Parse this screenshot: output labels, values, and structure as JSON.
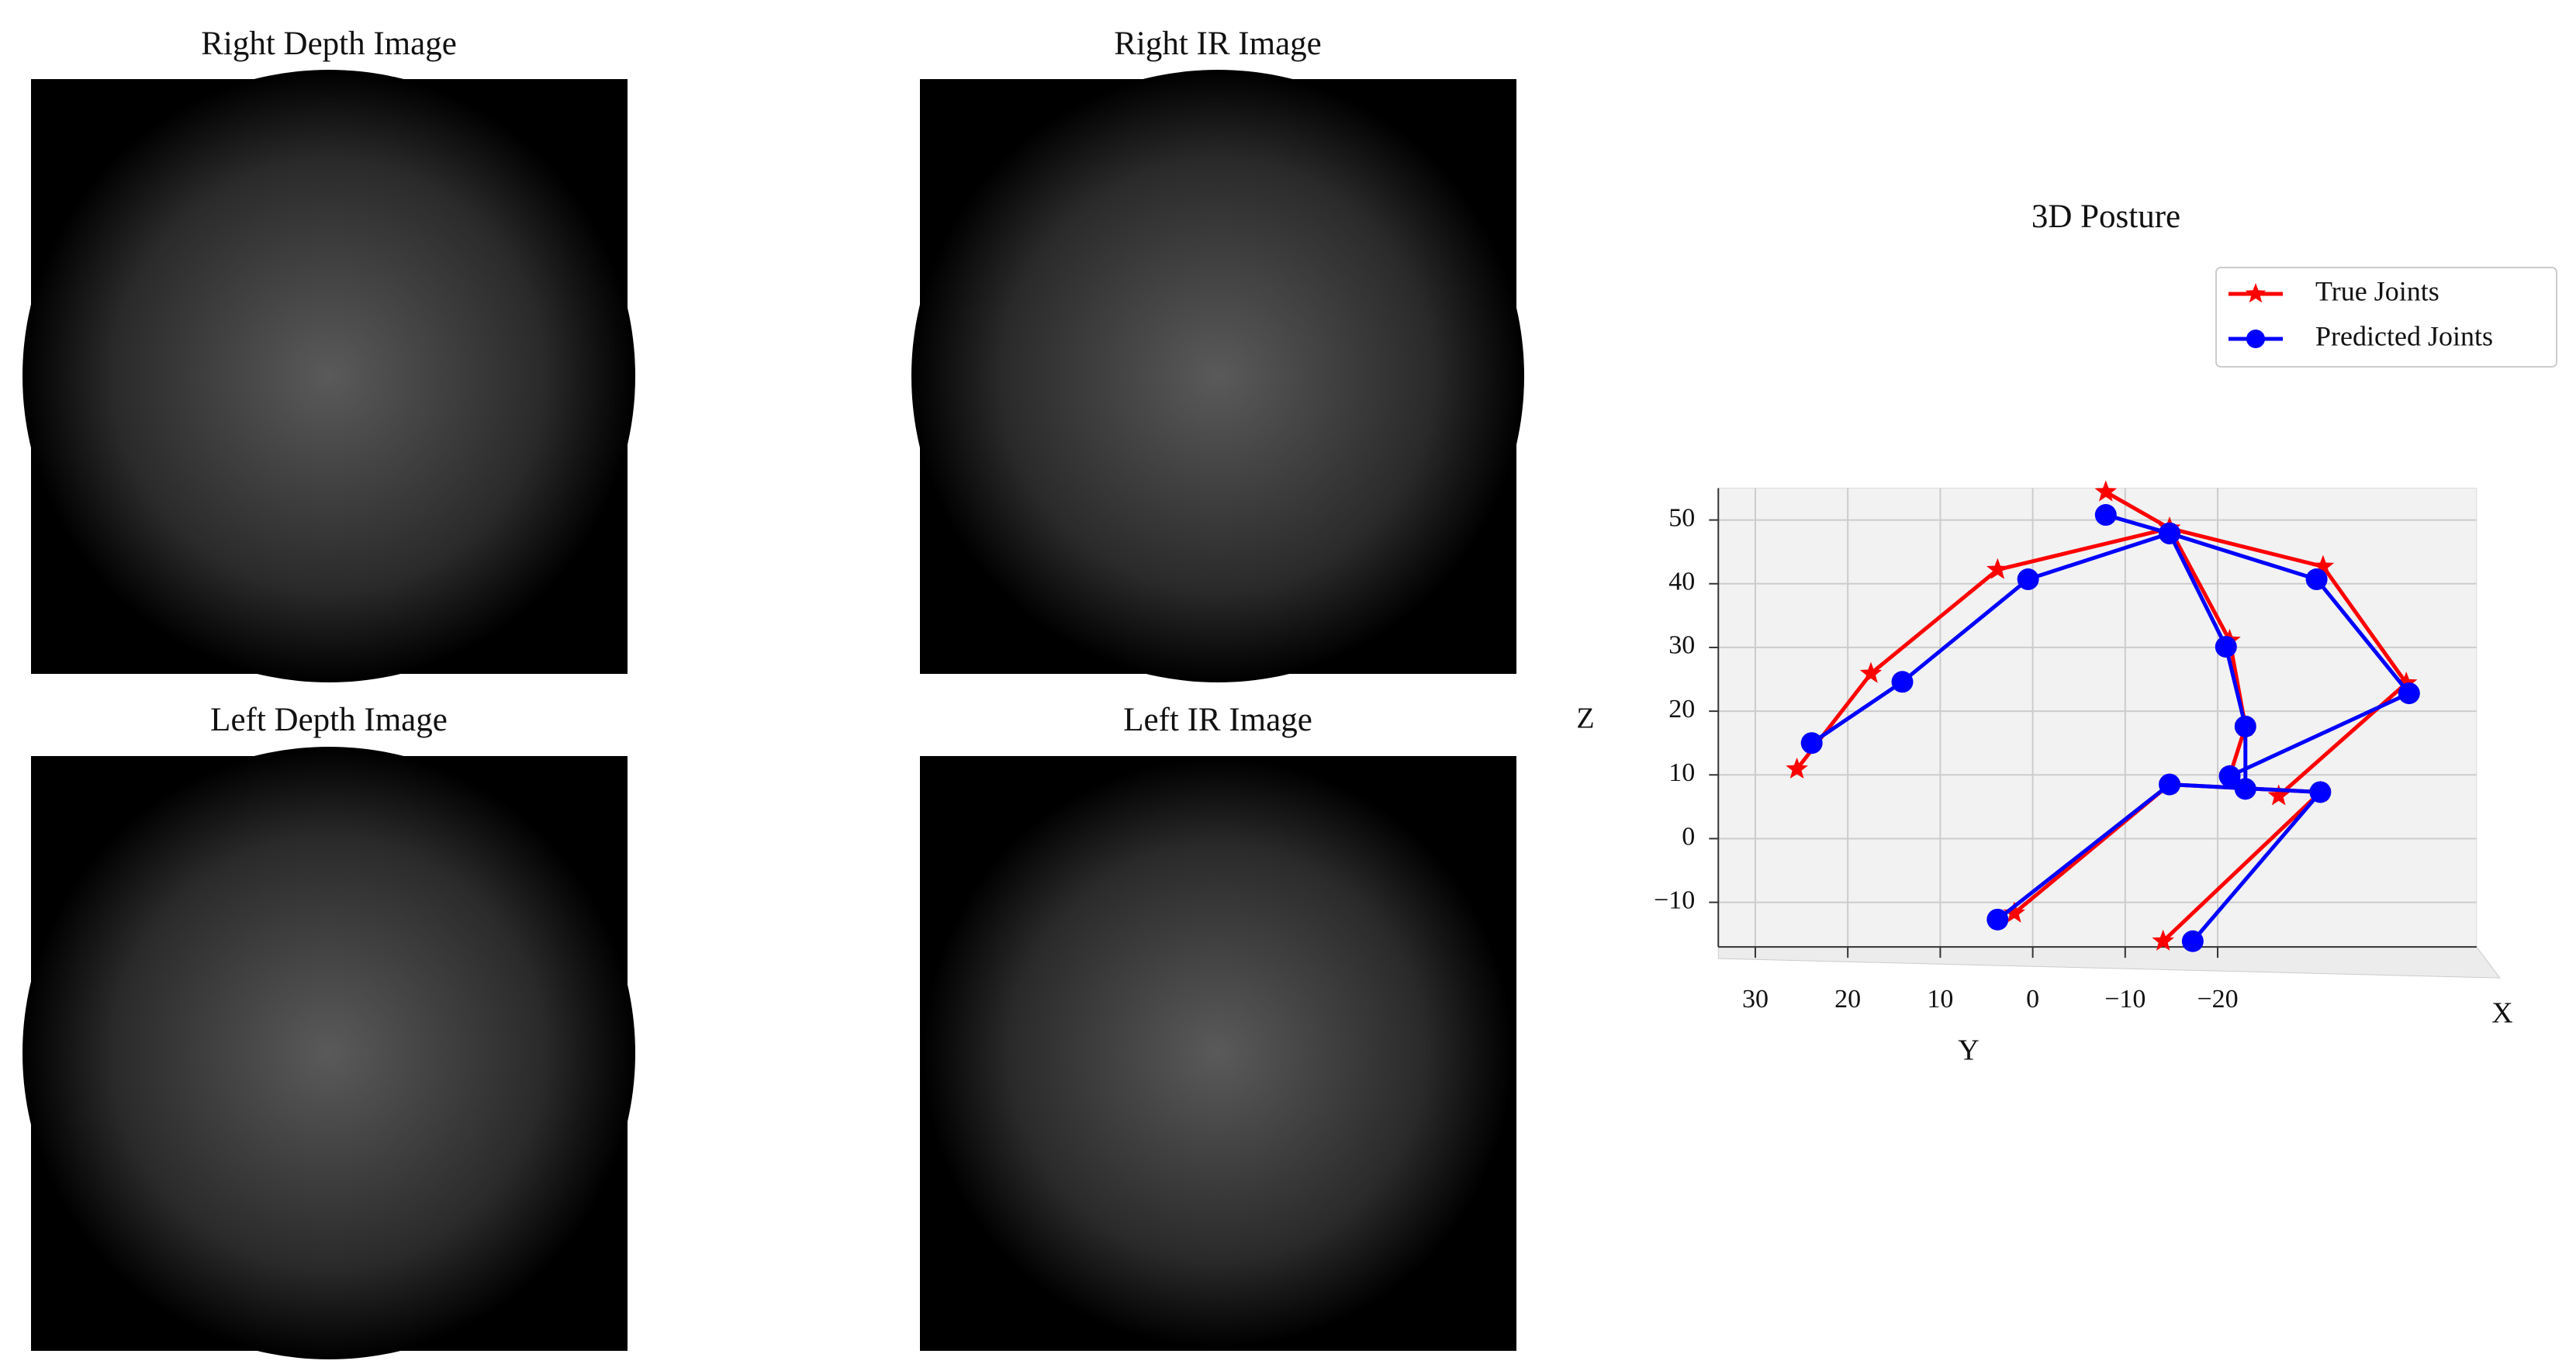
{
  "panels": [
    {
      "title": "Right Depth Image"
    },
    {
      "title": "Right IR Image"
    },
    {
      "title": "Left Depth Image"
    },
    {
      "title": "Left IR Image"
    }
  ],
  "chart_data": {
    "type": "line3d",
    "title": "3D Posture",
    "xlabel": "X",
    "ylabel": "Y",
    "zlabel": "Z",
    "ylim": [
      -48,
      34
    ],
    "yticks": [
      30,
      20,
      10,
      0,
      {
        "value": -10,
        "label": "−10"
      },
      {
        "value": -20,
        "label": "−20"
      }
    ],
    "zlim": [
      -17,
      55
    ],
    "zticks": [
      50,
      40,
      30,
      20,
      10,
      0,
      {
        "value": -10,
        "label": "−10"
      }
    ],
    "grid": true,
    "legend": "upper right",
    "series": [
      {
        "name": "True Joints",
        "color": "#ff0000",
        "marker": "star",
        "y": [
          -7.9,
          -14.8,
          3.8,
          17.5,
          25.5,
          null,
          -14.8,
          -31.4,
          -40.4,
          -26.6,
          null,
          -14.8,
          -21.3,
          -23.0,
          -21.3,
          null,
          2.0,
          -14.8,
          -31.1,
          -14.1
        ],
        "z": [
          54.4,
          48.7,
          42.2,
          25.9,
          10.9,
          null,
          48.7,
          42.7,
          24.4,
          6.7,
          null,
          48.7,
          31.1,
          17.6,
          9.8,
          null,
          -11.7,
          8.5,
          7.3,
          -16.1
        ]
      },
      {
        "name": "Predicted Joints",
        "color": "#0000ff",
        "marker": "circle",
        "y": [
          -7.9,
          -14.8,
          0.5,
          14.1,
          23.9,
          null,
          -14.8,
          -30.7,
          -40.7,
          -21.3,
          null,
          -14.8,
          -20.9,
          -23.0,
          -23.0,
          null,
          3.8,
          -14.8,
          -31.1,
          -17.3
        ],
        "z": [
          50.8,
          47.9,
          40.7,
          24.6,
          15.0,
          null,
          47.9,
          40.7,
          22.8,
          9.8,
          null,
          47.9,
          30.1,
          17.6,
          7.8,
          null,
          -12.7,
          8.5,
          7.3,
          -16.1
        ]
      }
    ]
  }
}
